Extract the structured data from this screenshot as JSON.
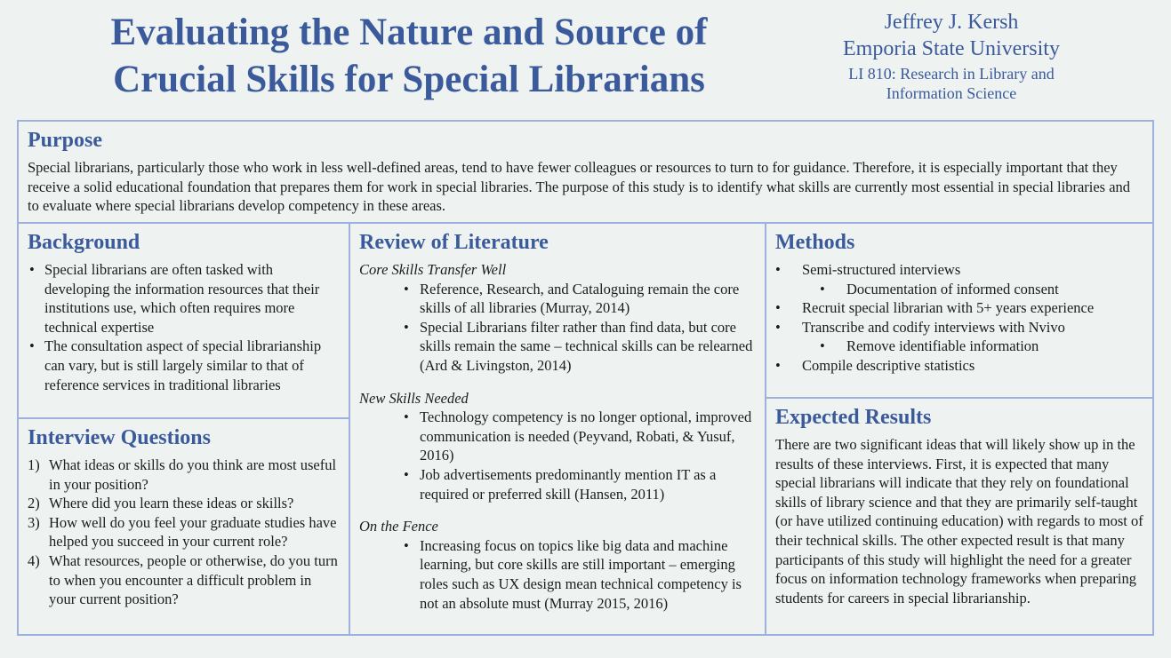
{
  "header": {
    "title_line1": "Evaluating the Nature and Source of",
    "title_line2": "Crucial Skills for Special Librarians",
    "author": "Jeffrey J. Kersh",
    "university": "Emporia State University",
    "course_line1": "LI 810: Research in Library and",
    "course_line2": "Information Science"
  },
  "purpose": {
    "heading": "Purpose",
    "text": "Special librarians, particularly those who work in less well-defined areas, tend to have fewer colleagues or resources to turn to for guidance. Therefore, it is especially important that they receive a solid educational foundation that prepares them for work in special libraries. The purpose of this study is to identify what skills are currently most essential in special libraries and to evaluate where special librarians develop competency in these areas."
  },
  "background": {
    "heading": "Background",
    "items": [
      "Special librarians are often tasked with developing the information resources that their institutions use, which often requires more technical expertise",
      "The consultation aspect of special librarianship can vary, but is still largely similar to that of reference services in traditional libraries"
    ]
  },
  "questions": {
    "heading": "Interview Questions",
    "items": [
      {
        "num": "1)",
        "text": "What ideas or skills do you think are most useful in your position?"
      },
      {
        "num": "2)",
        "text": "Where did you learn these ideas or skills?"
      },
      {
        "num": "3)",
        "text": "How well do you feel your graduate studies have helped you succeed in your current role?"
      },
      {
        "num": "4)",
        "text": "What resources, people or otherwise, do you turn to when you encounter a difficult problem in your current position?"
      }
    ]
  },
  "literature": {
    "heading": "Review of Literature",
    "groups": [
      {
        "title": "Core Skills Transfer Well",
        "items": [
          "Reference, Research, and Cataloguing remain the core skills of all libraries (Murray, 2014)",
          "Special Librarians filter rather than find data, but core skills remain the same – technical skills can be relearned (Ard & Livingston, 2014)"
        ]
      },
      {
        "title": "New Skills Needed",
        "items": [
          "Technology competency is no longer optional, improved communication is needed (Peyvand, Robati, & Yusuf,  2016)",
          "Job advertisements predominantly mention IT as a required or preferred skill (Hansen, 2011)"
        ]
      },
      {
        "title": "On the Fence",
        "items": [
          "Increasing focus on topics like big data and machine learning, but core skills are still important – emerging roles such as UX design mean technical competency is not an absolute must (Murray 2015, 2016)"
        ]
      }
    ]
  },
  "methods": {
    "heading": "Methods",
    "items": [
      "Semi-structured interviews",
      "Documentation of informed consent",
      "Recruit special librarian with 5+ years experience",
      "Transcribe and codify interviews with Nvivo",
      "Remove identifiable information",
      "Compile descriptive statistics"
    ]
  },
  "results": {
    "heading": "Expected Results",
    "text": "There are two significant ideas that will likely show up in the results of these interviews. First, it is expected that many special librarians will indicate that they rely on foundational skills of library science and that they are primarily self-taught (or have utilized continuing education) with regards to most of their technical skills. The other expected result is that many participants of this study will highlight the need for a greater focus on information technology frameworks when preparing students for careers in special librarianship."
  }
}
